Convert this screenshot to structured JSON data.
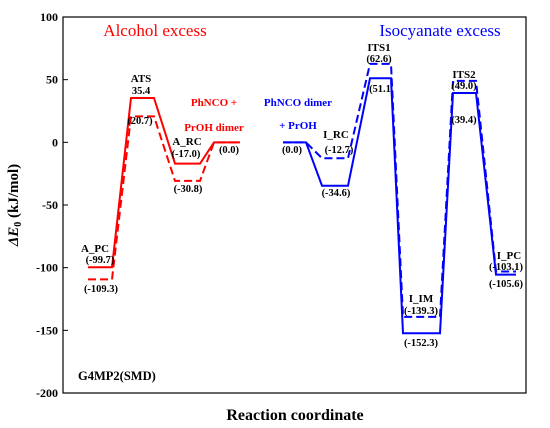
{
  "chart_data": {
    "type": "line",
    "style": "energy-profile",
    "title": "",
    "xlabel": "Reaction coordinate",
    "ylabel_prefix": "ΔE",
    "ylabel_sub": "0",
    "ylabel_suffix": " (kJ/mol)",
    "ylim": [
      -200,
      100
    ],
    "yticks": [
      "100",
      "50",
      "0",
      "-50",
      "-100",
      "-150",
      "-200"
    ],
    "ytick_values": [
      100,
      50,
      0,
      -50,
      -100,
      -150,
      -200
    ],
    "grid": false,
    "method_label": "G4MP2(SMD)",
    "colors": {
      "alcohol": "#ff0000",
      "isocyanate": "#0000ff",
      "axis": "#000000"
    },
    "panels": [
      {
        "name": "Alcohol excess",
        "color": "#ff0000",
        "reactant_label_line1": "PhNCO +",
        "reactant_label_line2": "PrOH dimer",
        "series": [
          {
            "style": "solid",
            "values": [
              -99.7,
              35.4,
              -17.0,
              0.0
            ]
          },
          {
            "style": "dashed",
            "values": [
              -109.3,
              20.7,
              -30.8,
              0.0
            ]
          }
        ],
        "stationary_points": [
          "A_PC",
          "ATS",
          "A_RC",
          ""
        ],
        "value_labels": [
          {
            "text": "(-99.7)"
          },
          {
            "text": "(-109.3)"
          },
          {
            "text": "35.4"
          },
          {
            "text": "(20.7)"
          },
          {
            "text": "(-17.0)"
          },
          {
            "text": "(-30.8)"
          },
          {
            "text": "(0.0)"
          }
        ]
      },
      {
        "name": "Isocyanate excess",
        "color": "#0000ff",
        "reactant_label_line1": "PhNCO dimer",
        "reactant_label_line2": "+ PrOH",
        "series": [
          {
            "style": "solid",
            "values": [
              0.0,
              -34.6,
              51.1,
              -152.3,
              39.4,
              -105.6
            ]
          },
          {
            "style": "dashed",
            "values": [
              0.0,
              -12.7,
              62.6,
              -139.3,
              49.0,
              -103.1
            ]
          }
        ],
        "stationary_points": [
          "",
          "I_RC",
          "ITS1",
          "I_IM",
          "ITS2",
          "I_PC"
        ],
        "value_labels": [
          {
            "text": "(0.0)"
          },
          {
            "text": "(-12.7)"
          },
          {
            "text": "(-34.6)"
          },
          {
            "text": "(62.6)"
          },
          {
            "text": "(51.1"
          },
          {
            "text": "(-139.3)"
          },
          {
            "text": "(-152.3)"
          },
          {
            "text": "(49.0)"
          },
          {
            "text": "(39.4)"
          },
          {
            "text": "(-103.1)"
          },
          {
            "text": "(-105.6)"
          }
        ]
      }
    ]
  }
}
